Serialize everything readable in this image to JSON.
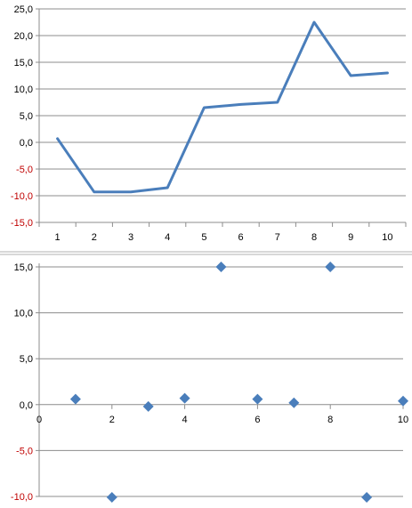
{
  "colors": {
    "series": "#4a7ebb",
    "marker": "#4a7ebb",
    "gridline": "#8c8c8c",
    "axis": "#8c8c8c",
    "divider": "#b0b0b0",
    "positive_label": "#000000",
    "negative_label": "#c00000"
  },
  "chart_data": [
    {
      "type": "line",
      "title": "",
      "xlabel": "",
      "ylabel": "",
      "categories": [
        "1",
        "2",
        "3",
        "4",
        "5",
        "6",
        "7",
        "8",
        "9",
        "10"
      ],
      "series": [
        {
          "values": [
            0.7,
            -9.3,
            -9.3,
            -8.5,
            6.5,
            7.1,
            7.5,
            22.5,
            12.5,
            13.0
          ]
        }
      ],
      "ylim": [
        -15,
        25
      ],
      "y_ticks": [
        25,
        20,
        15,
        10,
        5,
        0,
        -5,
        -10,
        -15
      ],
      "y_tick_labels": [
        "25,0",
        "20,0",
        "15,0",
        "10,0",
        "5,0",
        "0,0",
        "-5,0",
        "-10,0",
        "-15,0"
      ],
      "grid": true,
      "legend": "none",
      "negative_labels_red": true
    },
    {
      "type": "scatter",
      "title": "",
      "xlabel": "",
      "ylabel": "",
      "marker": "diamond",
      "series": [
        {
          "x": [
            1,
            2,
            3,
            4,
            5,
            6,
            7,
            8,
            9,
            10
          ],
          "y": [
            0.6,
            -10.1,
            -0.2,
            0.7,
            15.0,
            0.6,
            0.2,
            15.0,
            -10.1,
            0.4
          ]
        }
      ],
      "xlim": [
        0,
        10
      ],
      "ylim": [
        -10,
        15
      ],
      "x_ticks": [
        0,
        2,
        4,
        6,
        8,
        10
      ],
      "x_tick_labels": [
        "0",
        "2",
        "4",
        "6",
        "8",
        "10"
      ],
      "y_ticks": [
        15,
        10,
        5,
        0,
        -5,
        -10
      ],
      "y_tick_labels": [
        "15,0",
        "10,0",
        "5,0",
        "0,0",
        "-5,0",
        "-10,0"
      ],
      "grid": true,
      "legend": "none",
      "negative_labels_red": true
    }
  ]
}
